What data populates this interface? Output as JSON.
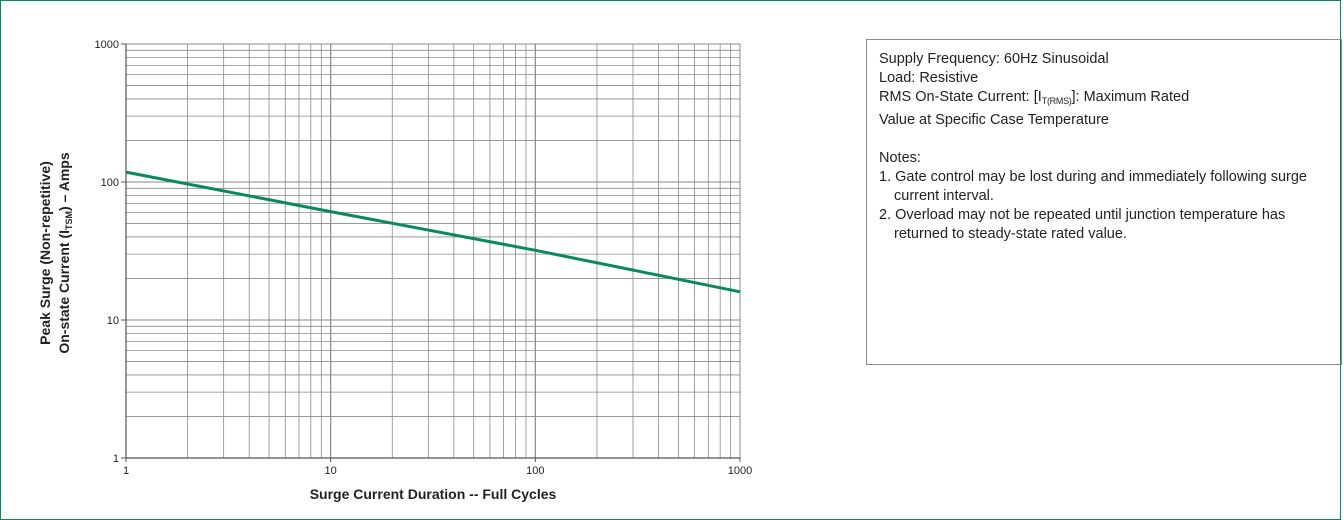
{
  "chart_data": {
    "type": "line",
    "xscale": "log",
    "yscale": "log",
    "xlim": [
      1,
      1000
    ],
    "ylim": [
      1,
      1000
    ],
    "grid": true,
    "x_ticks": [
      "1",
      "10",
      "100",
      "1000"
    ],
    "y_ticks": [
      "1",
      "10",
      "100",
      "1000"
    ],
    "xlabel": "Surge Current Duration -- Full Cycles",
    "ylabel_line1": "Peak Surge (Non-repetitive)",
    "ylabel_line2_pre": "On-state Current (I",
    "ylabel_line2_sub": "TSM",
    "ylabel_line2_post": ") – Amps",
    "series": [
      {
        "color": "#0a8a5a",
        "x": [
          1,
          10,
          100,
          1000
        ],
        "y": [
          118,
          61,
          32,
          16
        ]
      }
    ]
  },
  "notes_box": {
    "line1": "Supply Frequency: 60Hz Sinusoidal",
    "line2": "Load: Resistive",
    "line3_pre": "RMS On-State Current: [I",
    "line3_sub": "T(RMS)",
    "line3_post": "]: Maximum Rated",
    "line4": "Value at Specific Case Temperature",
    "notes_title": "Notes:",
    "note1": "1. Gate control may be lost during and immediately following surge current interval.",
    "note2": "2. Overload may not be repeated until junction temperature has returned to steady-state rated value."
  }
}
